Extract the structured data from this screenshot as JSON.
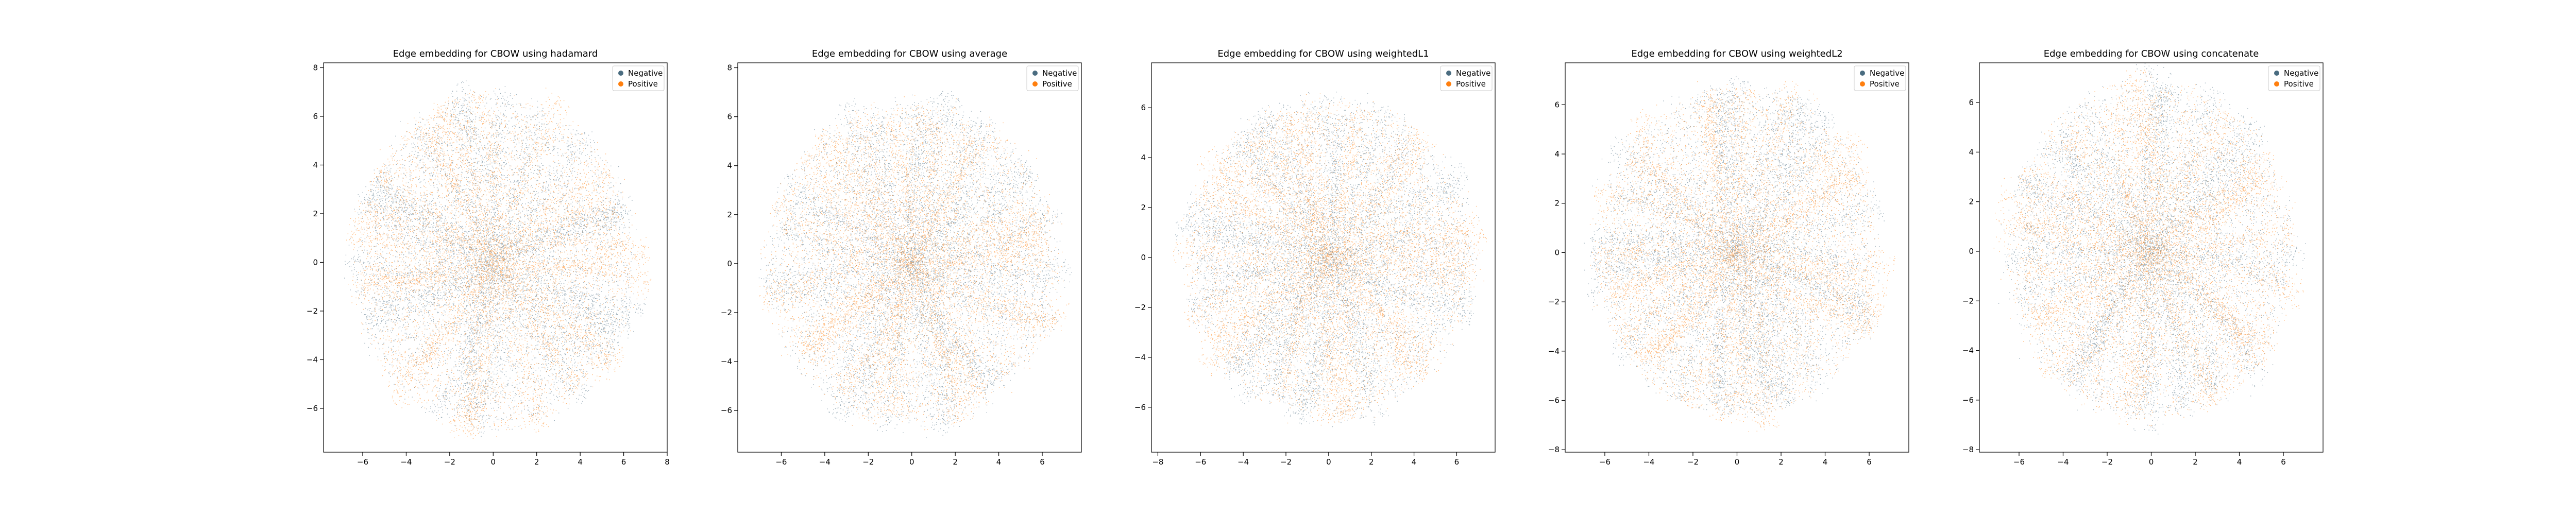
{
  "colors": {
    "negative": "#4a6c80",
    "positive": "#ff7f0e",
    "background": "#ffffff",
    "axis": "#000000"
  },
  "chart_data": [
    {
      "type": "scatter",
      "title": "Edge embedding for CBOW using hadamard",
      "xlim": [
        -7.8,
        8.0
      ],
      "ylim": [
        -7.8,
        8.2
      ],
      "xticks": [
        -6,
        -4,
        -2,
        0,
        2,
        4,
        6,
        8
      ],
      "yticks": [
        -6,
        -4,
        -2,
        0,
        2,
        4,
        6,
        8
      ],
      "legend": {
        "position": "top-right",
        "entries": [
          "Negative",
          "Positive"
        ]
      },
      "series": [
        {
          "name": "Negative",
          "shape": "radial-cloud",
          "center": [
            0,
            0
          ],
          "radius": [
            7.0,
            7.4
          ]
        },
        {
          "name": "Positive",
          "shape": "radial-cloud",
          "center": [
            0,
            0
          ],
          "radius": [
            7.0,
            7.4
          ]
        }
      ]
    },
    {
      "type": "scatter",
      "title": "Edge embedding for CBOW using average",
      "xlim": [
        -8.0,
        7.8
      ],
      "ylim": [
        -7.7,
        8.2
      ],
      "xticks": [
        -6,
        -4,
        -2,
        0,
        2,
        4,
        6
      ],
      "yticks": [
        -6,
        -4,
        -2,
        0,
        2,
        4,
        6,
        8
      ],
      "legend": {
        "position": "top-right",
        "entries": [
          "Negative",
          "Positive"
        ]
      },
      "series": [
        {
          "name": "Negative",
          "shape": "radial-cloud",
          "center": [
            0,
            0
          ],
          "radius": [
            7.2,
            7.1
          ]
        },
        {
          "name": "Positive",
          "shape": "radial-cloud",
          "center": [
            0,
            0
          ],
          "radius": [
            7.2,
            7.1
          ]
        }
      ]
    },
    {
      "type": "scatter",
      "title": "Edge embedding for CBOW using weightedL1",
      "xlim": [
        -8.3,
        7.8
      ],
      "ylim": [
        -7.8,
        7.8
      ],
      "xticks": [
        -8,
        -6,
        -4,
        -2,
        0,
        2,
        4,
        6
      ],
      "yticks": [
        -6,
        -4,
        -2,
        0,
        2,
        4,
        6
      ],
      "legend": {
        "position": "top-right",
        "entries": [
          "Negative",
          "Positive"
        ]
      },
      "series": [
        {
          "name": "Negative",
          "shape": "radial-cloud",
          "center": [
            0,
            0
          ],
          "radius": [
            7.2,
            6.9
          ]
        },
        {
          "name": "Positive",
          "shape": "radial-cloud",
          "center": [
            0,
            0
          ],
          "radius": [
            7.2,
            6.9
          ]
        }
      ]
    },
    {
      "type": "scatter",
      "title": "Edge embedding for CBOW using weightedL2",
      "xlim": [
        -7.8,
        7.8
      ],
      "ylim": [
        -8.1,
        7.7
      ],
      "xticks": [
        -6,
        -4,
        -2,
        0,
        2,
        4,
        6
      ],
      "yticks": [
        -8,
        -6,
        -4,
        -2,
        0,
        2,
        4,
        6
      ],
      "legend": {
        "position": "top-right",
        "entries": [
          "Negative",
          "Positive"
        ]
      },
      "series": [
        {
          "name": "Negative",
          "shape": "radial-cloud",
          "center": [
            0,
            0
          ],
          "radius": [
            7.0,
            7.2
          ]
        },
        {
          "name": "Positive",
          "shape": "radial-cloud",
          "center": [
            0,
            0
          ],
          "radius": [
            7.0,
            7.2
          ]
        }
      ]
    },
    {
      "type": "scatter",
      "title": "Edge embedding for CBOW using concatenate",
      "xlim": [
        -7.8,
        7.8
      ],
      "ylim": [
        -8.1,
        7.6
      ],
      "xticks": [
        -6,
        -4,
        -2,
        0,
        2,
        4,
        6
      ],
      "yticks": [
        -8,
        -6,
        -4,
        -2,
        0,
        2,
        4,
        6
      ],
      "legend": {
        "position": "top-right",
        "entries": [
          "Negative",
          "Positive"
        ]
      },
      "series": [
        {
          "name": "Negative",
          "shape": "radial-cloud",
          "center": [
            0,
            0
          ],
          "radius": [
            7.0,
            7.3
          ]
        },
        {
          "name": "Positive",
          "shape": "radial-cloud",
          "center": [
            0,
            0
          ],
          "radius": [
            7.0,
            7.3
          ]
        }
      ]
    }
  ]
}
